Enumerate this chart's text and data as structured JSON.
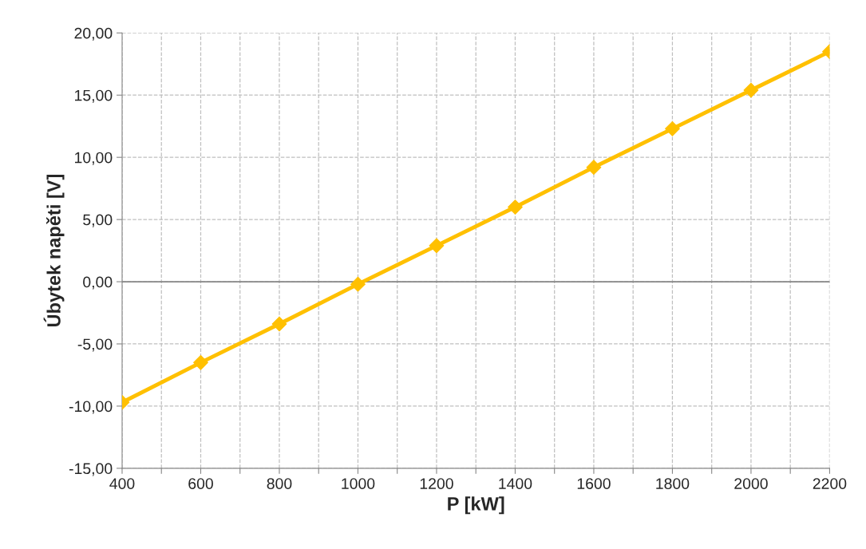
{
  "chart_data": {
    "type": "line",
    "xlabel": "P [kW]",
    "ylabel": "Úbytek napěti [V]",
    "x": [
      400,
      600,
      800,
      1000,
      1200,
      1400,
      1600,
      1800,
      2000,
      2200
    ],
    "series": [
      {
        "color": "#ffc000",
        "values": [
          -9.7,
          -6.5,
          -3.4,
          -0.2,
          2.9,
          6.0,
          9.2,
          12.3,
          15.4,
          18.5
        ]
      }
    ],
    "xlim": [
      400,
      2200
    ],
    "xticks": [
      400,
      {
        "value": 500,
        "label": null
      },
      600,
      {
        "value": 700,
        "label": null
      },
      800,
      {
        "value": 900,
        "label": null
      },
      1000,
      {
        "value": 1100,
        "label": null
      },
      1200,
      {
        "value": 1300,
        "label": null
      },
      1400,
      {
        "value": 1500,
        "label": null
      },
      1600,
      {
        "value": 1700,
        "label": null
      },
      1800,
      {
        "value": 1900,
        "label": null
      },
      2000,
      {
        "value": 2100,
        "label": null
      },
      2200
    ],
    "ylim": [
      -15,
      20
    ],
    "yticks": [
      {
        "value": -15,
        "label": "-15,00"
      },
      {
        "value": -10,
        "label": "-10,00"
      },
      {
        "value": -5,
        "label": "-5,00"
      },
      {
        "value": 0,
        "label": "0,00"
      },
      {
        "value": 5,
        "label": "5,00"
      },
      {
        "value": 10,
        "label": "10,00"
      },
      {
        "value": 15,
        "label": "15,00"
      },
      {
        "value": 20,
        "label": "20,00"
      }
    ],
    "ref_lines": [
      {
        "axis": "y",
        "value": 0,
        "color": "#868686"
      }
    ],
    "grid": true,
    "marker": "diamond",
    "line_style": "solid",
    "legend": false
  }
}
